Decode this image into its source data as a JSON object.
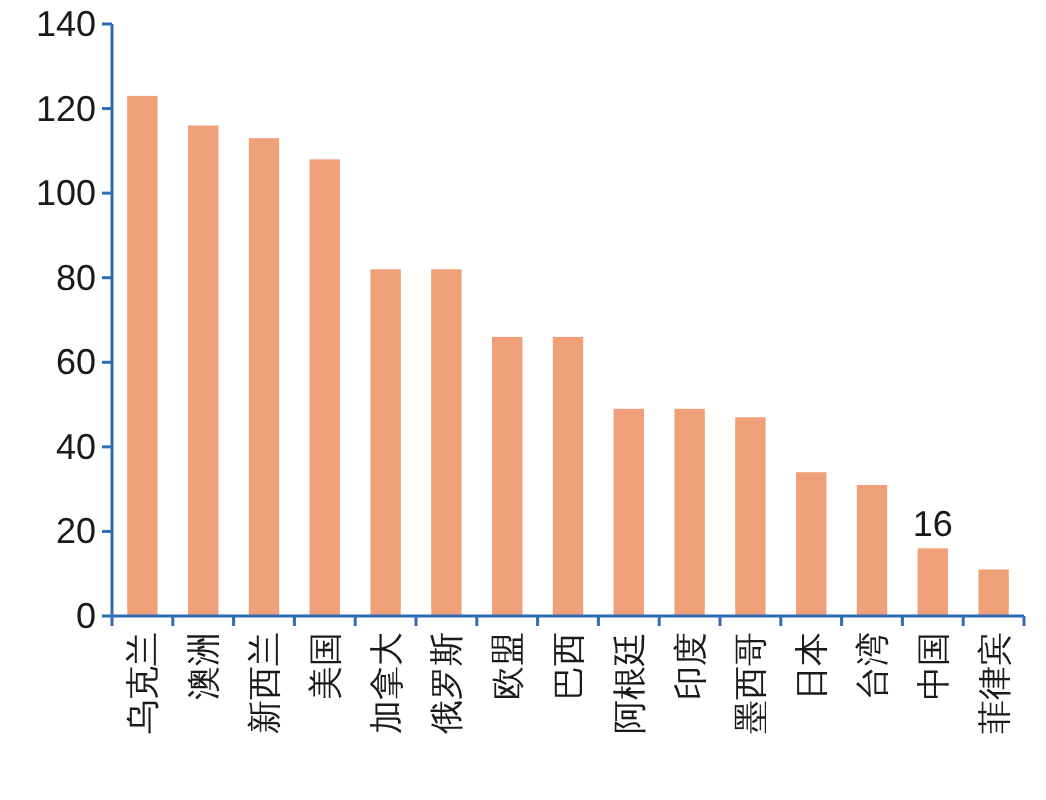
{
  "chart_data": {
    "type": "bar",
    "categories": [
      "乌克兰",
      "澳洲",
      "新西兰",
      "美国",
      "加拿大",
      "俄罗斯",
      "欧盟",
      "巴西",
      "阿根廷",
      "印度",
      "墨西哥",
      "日本",
      "台湾",
      "中国",
      "菲律宾"
    ],
    "values": [
      123,
      116,
      113,
      108,
      82,
      82,
      66,
      66,
      49,
      49,
      47,
      34,
      31,
      16,
      11
    ],
    "value_labels": [
      null,
      null,
      null,
      null,
      null,
      null,
      null,
      null,
      null,
      null,
      null,
      null,
      null,
      "16",
      null
    ],
    "color": "#f0a078",
    "ylim": [
      0,
      140
    ],
    "yticks": [
      0,
      20,
      40,
      60,
      80,
      100,
      120,
      140
    ],
    "grid": false
  }
}
